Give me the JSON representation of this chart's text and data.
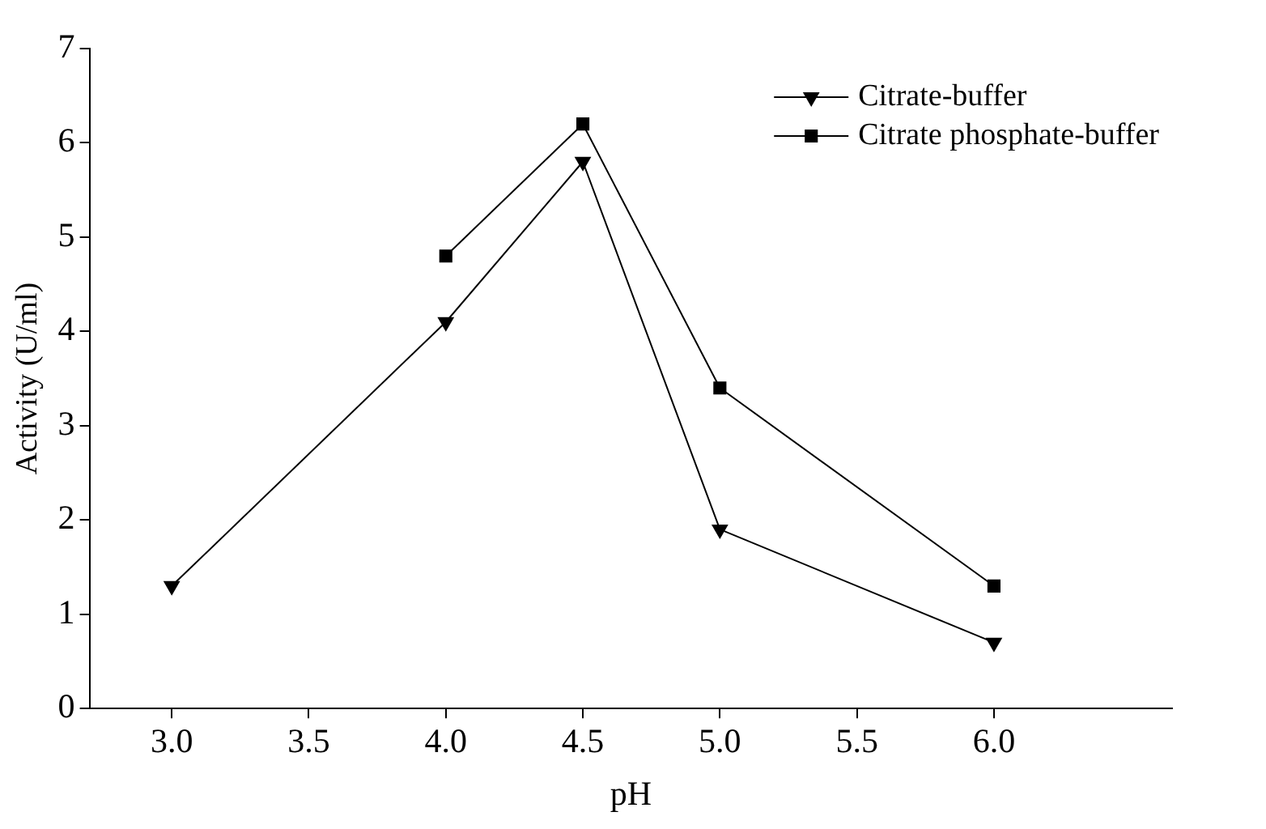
{
  "chart_data": {
    "type": "line",
    "xlabel": "pH",
    "ylabel": "Activity (U/ml)",
    "series": [
      {
        "name": "Citrate-buffer",
        "color": "#000000",
        "marker": "triangle",
        "x": [
          3.0,
          4.0,
          4.5,
          5.0,
          6.0
        ],
        "values": [
          1.3,
          4.1,
          5.8,
          1.9,
          0.7
        ]
      },
      {
        "name": "Citrate phosphate-buffer",
        "color": "#000000",
        "marker": "square",
        "x": [
          4.0,
          4.5,
          5.0,
          6.0
        ],
        "values": [
          4.8,
          6.2,
          3.4,
          1.3
        ]
      }
    ],
    "xlim": [
      2.7,
      6.65
    ],
    "xticks": [
      {
        "value": 3,
        "label": "3.0"
      },
      {
        "value": 3.5,
        "label": "3.5"
      },
      {
        "value": 4,
        "label": "4.0"
      },
      {
        "value": 4.5,
        "label": "4.5"
      },
      {
        "value": 5,
        "label": "5.0"
      },
      {
        "value": 5.5,
        "label": "5.5"
      },
      {
        "value": 6,
        "label": "6.0"
      }
    ],
    "ylim": [
      0,
      7
    ],
    "yticks": [
      0,
      1,
      2,
      3,
      4,
      5,
      6,
      7
    ],
    "grid": false,
    "legend": "top right",
    "line_style": "solid"
  }
}
